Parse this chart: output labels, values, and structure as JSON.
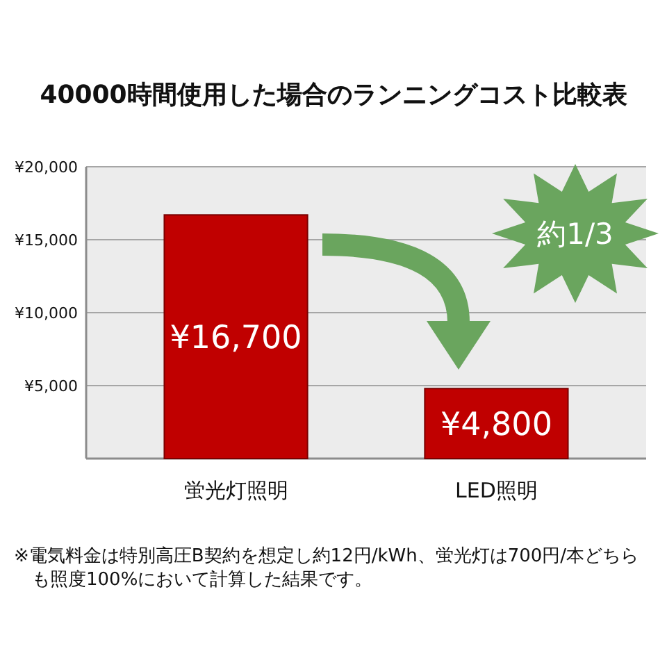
{
  "chart_data": {
    "type": "bar",
    "title": "40000時間使用した場合のランニングコスト比較表",
    "categories": [
      "蛍光灯照明",
      "LED照明"
    ],
    "values": [
      16700,
      4800
    ],
    "color": "#c00000",
    "value_labels": [
      "¥16,700",
      "¥4,800"
    ],
    "ylim": [
      0,
      20000
    ],
    "yticks": [
      {
        "value": 5000,
        "label": "¥5,000"
      },
      {
        "value": 10000,
        "label": "¥10,000"
      },
      {
        "value": 15000,
        "label": "¥15,000"
      },
      {
        "value": 20000,
        "label": "¥20,000"
      }
    ],
    "grid": "y",
    "annotations": [
      "約1/3",
      "※電気料金は特別高圧B契約を想定し約12円/kWh、蛍光灯は700円/本どちらも照度100%において計算した結果です。"
    ]
  }
}
